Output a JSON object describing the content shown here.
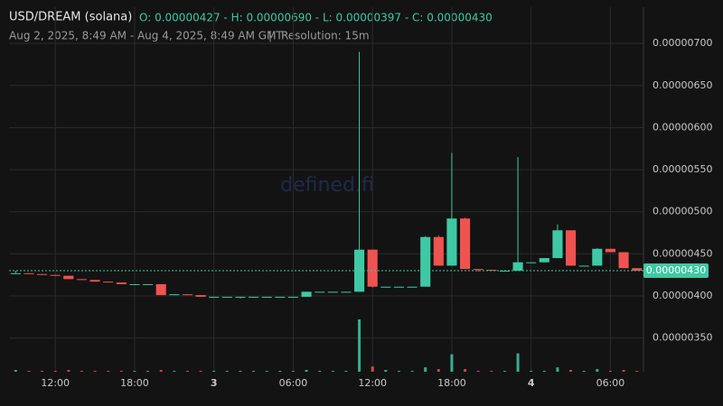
{
  "chart_data": {
    "type": "candlestick",
    "title": "USD/DREAM (solana)",
    "ohlc_summary": "O: 0.00000427 - H: 0.00000690 - L: 0.00000397 - C: 0.00000430",
    "subtitle": "Aug 2, 2025, 8:49 AM - Aug 4, 2025, 8:49 AM GMT",
    "resolution": "Resolution: 15m",
    "watermark": "defined.fi",
    "categories": [
      null,
      null,
      null,
      "12:00",
      null,
      null,
      null,
      null,
      null,
      "18:00",
      null,
      null,
      null,
      null,
      null,
      "3",
      null,
      null,
      null,
      null,
      null,
      "06:00",
      null,
      null,
      null,
      null,
      null,
      "12:00",
      null,
      null,
      null,
      null,
      null,
      "18:00",
      null,
      null,
      null,
      null,
      null,
      "4",
      null,
      null,
      null,
      null,
      null,
      "06:00",
      null,
      null
    ],
    "open": [
      4.27e-06,
      4.27e-06,
      4.26e-06,
      4.25e-06,
      4.24e-06,
      4.2e-06,
      4.19e-06,
      4.17e-06,
      4.16e-06,
      4.14e-06,
      4.14e-06,
      4.14e-06,
      4.01e-06,
      4.02e-06,
      4.01e-06,
      3.99e-06,
      3.99e-06,
      3.99e-06,
      3.99e-06,
      3.99e-06,
      3.99e-06,
      3.99e-06,
      3.99e-06,
      4.05e-06,
      4.05e-06,
      4.05e-06,
      4.05e-06,
      4.55e-06,
      4.11e-06,
      4.11e-06,
      4.11e-06,
      4.11e-06,
      4.7e-06,
      4.36e-06,
      4.92e-06,
      4.32e-06,
      4.31e-06,
      4.3e-06,
      4.3e-06,
      4.4e-06,
      4.4e-06,
      4.45e-06,
      4.78e-06,
      4.36e-06,
      4.36e-06,
      4.56e-06,
      4.52e-06,
      4.33e-06
    ],
    "high": [
      4.3e-06,
      4.27e-06,
      4.26e-06,
      4.25e-06,
      4.24e-06,
      4.2e-06,
      4.19e-06,
      4.17e-06,
      4.16e-06,
      4.14e-06,
      4.14e-06,
      4.14e-06,
      4.02e-06,
      4.02e-06,
      4.01e-06,
      3.99e-06,
      3.99e-06,
      3.99e-06,
      3.99e-06,
      3.99e-06,
      3.99e-06,
      3.99e-06,
      4.05e-06,
      4.05e-06,
      4.05e-06,
      4.05e-06,
      6.9e-06,
      4.55e-06,
      4.11e-06,
      4.11e-06,
      4.11e-06,
      4.71e-06,
      4.72e-06,
      5.7e-06,
      4.93e-06,
      4.32e-06,
      4.31e-06,
      4.3e-06,
      5.65e-06,
      4.4e-06,
      4.45e-06,
      4.85e-06,
      4.78e-06,
      4.36e-06,
      4.57e-06,
      4.56e-06,
      4.52e-06,
      4.33e-06
    ],
    "low": [
      4.27e-06,
      4.26e-06,
      4.25e-06,
      4.24e-06,
      4.2e-06,
      4.19e-06,
      4.17e-06,
      4.16e-06,
      4.14e-06,
      4.14e-06,
      4.14e-06,
      4.01e-06,
      4.01e-06,
      4.01e-06,
      3.99e-06,
      3.99e-06,
      3.99e-06,
      3.97e-06,
      3.99e-06,
      3.99e-06,
      3.99e-06,
      3.99e-06,
      3.99e-06,
      4.05e-06,
      4.05e-06,
      4.05e-06,
      4.05e-06,
      4.1e-06,
      4.11e-06,
      4.11e-06,
      4.11e-06,
      4.11e-06,
      4.36e-06,
      4.36e-06,
      4.32e-06,
      4.29e-06,
      4.3e-06,
      4.3e-06,
      4.3e-06,
      4.4e-06,
      4.4e-06,
      4.45e-06,
      4.36e-06,
      4.36e-06,
      4.36e-06,
      4.52e-06,
      4.33e-06,
      4.3e-06
    ],
    "close": [
      4.27e-06,
      4.26e-06,
      4.25e-06,
      4.24e-06,
      4.2e-06,
      4.19e-06,
      4.17e-06,
      4.16e-06,
      4.14e-06,
      4.14e-06,
      4.14e-06,
      4.01e-06,
      4.02e-06,
      4.01e-06,
      3.99e-06,
      3.99e-06,
      3.99e-06,
      3.99e-06,
      3.99e-06,
      3.99e-06,
      3.99e-06,
      3.99e-06,
      4.05e-06,
      4.05e-06,
      4.05e-06,
      4.05e-06,
      4.55e-06,
      4.11e-06,
      4.11e-06,
      4.11e-06,
      4.11e-06,
      4.7e-06,
      4.36e-06,
      4.92e-06,
      4.32e-06,
      4.31e-06,
      4.3e-06,
      4.3e-06,
      4.4e-06,
      4.4e-06,
      4.45e-06,
      4.78e-06,
      4.36e-06,
      4.36e-06,
      4.56e-06,
      4.52e-06,
      4.33e-06,
      4.3e-06
    ],
    "volume": [
      2,
      1,
      1,
      1,
      2,
      1,
      1,
      1,
      1,
      1,
      1,
      2,
      1,
      1,
      1,
      1,
      1,
      1,
      1,
      1,
      1,
      1,
      2,
      1,
      1,
      1,
      60,
      6,
      2,
      1,
      1,
      5,
      3,
      20,
      3,
      1,
      1,
      1,
      21,
      1,
      1,
      5,
      2,
      1,
      3,
      1,
      2,
      1
    ],
    "up_color": "#3ec9a4",
    "down_color": "#ef5350",
    "ylim": [
      3.1e-06,
      7.43e-06
    ],
    "yticks": [
      {
        "value": 3.5e-06,
        "label": "0.00000350"
      },
      {
        "value": 4e-06,
        "label": "0.00000400"
      },
      {
        "value": 4.5e-06,
        "label": "0.00000450"
      },
      {
        "value": 5e-06,
        "label": "0.00000500"
      },
      {
        "value": 5.5e-06,
        "label": "0.00000550"
      },
      {
        "value": 6e-06,
        "label": "0.00000600"
      },
      {
        "value": 6.5e-06,
        "label": "0.00000650"
      },
      {
        "value": 7e-06,
        "label": "0.00000700"
      }
    ],
    "last_price": {
      "value": 4.3e-06,
      "label": "0.00000430"
    },
    "grid": true
  }
}
